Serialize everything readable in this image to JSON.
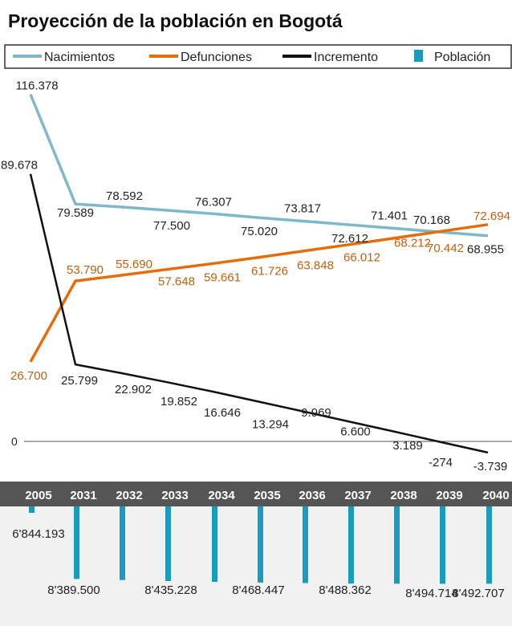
{
  "chart_data": {
    "type": "line",
    "title": "Proyección de la población en Bogotá",
    "categories": [
      "2005",
      "2031",
      "2032",
      "2033",
      "2034",
      "2035",
      "2036",
      "2037",
      "2038",
      "2039",
      "2040"
    ],
    "zero_label": "0",
    "legend": [
      {
        "name": "Nacimientos",
        "color": "#7fb8c9",
        "kind": "line"
      },
      {
        "name": "Defunciones",
        "color": "#e46c0a",
        "kind": "line"
      },
      {
        "name": "Incremento",
        "color": "#111111",
        "kind": "line"
      },
      {
        "name": "Población",
        "color": "#1a9bbb",
        "kind": "bar"
      }
    ],
    "series": [
      {
        "name": "Nacimientos",
        "color": "#7fb8c9",
        "label_color": "#222222",
        "values": [
          116378,
          79589,
          78592,
          77500,
          76307,
          75020,
          73817,
          72612,
          71401,
          70168,
          68955
        ],
        "labels": [
          "116.378",
          "79.589",
          "78.592",
          "77.500",
          "76.307",
          "75.020",
          "73.817",
          "72.612",
          "71.401",
          "70.168",
          "68.955"
        ]
      },
      {
        "name": "Defunciones",
        "color": "#e46c0a",
        "label_color": "#c05f0d",
        "values": [
          26700,
          53790,
          55690,
          57648,
          59661,
          61726,
          63848,
          66012,
          68212,
          70442,
          72694
        ],
        "labels": [
          "26.700",
          "53.790",
          "55.690",
          "57.648",
          "59.661",
          "61.726",
          "63.848",
          "66.012",
          "68.212",
          "70.442",
          "72.694"
        ]
      },
      {
        "name": "Incremento",
        "color": "#111111",
        "label_color": "#222222",
        "values": [
          89678,
          25799,
          22902,
          19852,
          16646,
          13294,
          9969,
          6600,
          3189,
          -274,
          -3739
        ],
        "labels": [
          "89.678",
          "25.799",
          "22.902",
          "19.852",
          "16.646",
          "13.294",
          "9.969",
          "6.600",
          "3.189",
          "-274",
          "-3.739"
        ]
      }
    ],
    "population": {
      "name": "Población",
      "color": "#1a9bbb",
      "values": [
        6844193,
        8389500,
        null,
        8435228,
        null,
        8468447,
        null,
        8488362,
        null,
        8494714,
        8492707
      ],
      "labels": [
        "6'844.193",
        "8'389.500",
        "",
        "8'435.228",
        "",
        "8'468.447",
        "",
        "8'488.362",
        "",
        "8'494.714",
        "8'492.707"
      ]
    },
    "ylim": [
      -8000,
      124000
    ]
  }
}
